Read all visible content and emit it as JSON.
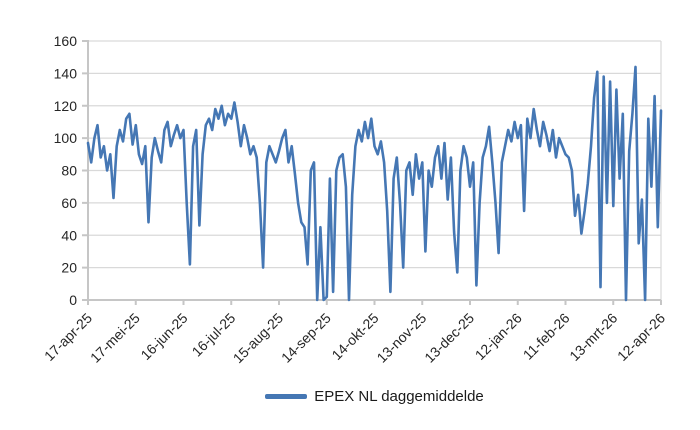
{
  "chart_data": {
    "type": "line",
    "title": "",
    "xlabel": "",
    "ylabel": "",
    "grid": true,
    "legend": {
      "position": "bottom",
      "label": "EPEX NL daggemiddelde"
    },
    "x": {
      "tick_labels": [
        "17-apr-25",
        "17-mei-25",
        "16-jun-25",
        "16-jul-25",
        "15-aug-25",
        "14-sep-25",
        "14-okt-25",
        "13-nov-25",
        "13-dec-25",
        "12-jan-26",
        "11-feb-26",
        "13-mrt-26",
        "12-apr-26"
      ],
      "tick_interval_days": 30,
      "total_days": 360,
      "label_rotation_deg": -45
    },
    "y": {
      "ticks": [
        0,
        20,
        40,
        60,
        80,
        100,
        120,
        140,
        160
      ],
      "min": 0,
      "max": 160
    },
    "series": [
      {
        "name": "EPEX NL daggemiddelde",
        "color": "#4577b4",
        "x_day_step": 2,
        "values": [
          97,
          85,
          100,
          108,
          88,
          95,
          80,
          90,
          63,
          95,
          105,
          98,
          112,
          115,
          96,
          108,
          90,
          84,
          95,
          48,
          88,
          100,
          92,
          85,
          105,
          110,
          95,
          102,
          108,
          100,
          105,
          60,
          22,
          95,
          105,
          46,
          90,
          108,
          112,
          105,
          118,
          112,
          120,
          108,
          115,
          112,
          122,
          110,
          95,
          108,
          100,
          90,
          95,
          88,
          60,
          20,
          85,
          95,
          90,
          85,
          92,
          100,
          105,
          85,
          95,
          78,
          60,
          48,
          45,
          22,
          80,
          85,
          0,
          45,
          0,
          2,
          75,
          5,
          80,
          88,
          90,
          70,
          0,
          65,
          95,
          105,
          98,
          110,
          100,
          112,
          95,
          90,
          98,
          85,
          55,
          5,
          75,
          88,
          60,
          20,
          80,
          85,
          65,
          90,
          75,
          85,
          30,
          80,
          70,
          88,
          95,
          75,
          97,
          62,
          88,
          42,
          17,
          80,
          95,
          88,
          70,
          85,
          9,
          60,
          88,
          95,
          107,
          85,
          60,
          29,
          85,
          95,
          105,
          98,
          110,
          100,
          108,
          55,
          112,
          100,
          118,
          105,
          95,
          110,
          102,
          92,
          105,
          88,
          100,
          95,
          90,
          88,
          80,
          52,
          65,
          41,
          55,
          72,
          95,
          125,
          141,
          8,
          138,
          60,
          135,
          58,
          130,
          75,
          115,
          0,
          92,
          115,
          144,
          35,
          62,
          0,
          112,
          70,
          126,
          45,
          117
        ]
      }
    ]
  },
  "colors": {
    "line": "#4577b4",
    "gridline": "#d9d9d9",
    "axis": "#c6c6c6",
    "tick_text": "#262626",
    "background": "#ffffff"
  }
}
